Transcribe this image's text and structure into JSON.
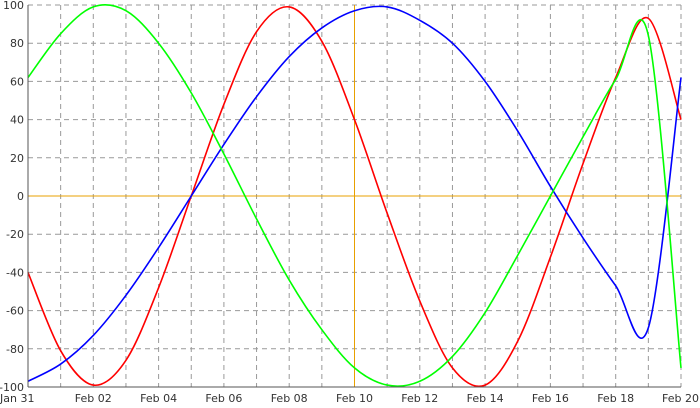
{
  "chart_data": {
    "type": "line",
    "title": "",
    "xlabel": "",
    "ylabel": "",
    "x_range": [
      "Jan 31",
      "Feb 20"
    ],
    "x_tick_labels": [
      "Jan 31",
      "Feb 02",
      "Feb 04",
      "Feb 06",
      "Feb 08",
      "Feb 10",
      "Feb 12",
      "Feb 14",
      "Feb 16",
      "Feb 18",
      "Feb 20"
    ],
    "ylim": [
      -100,
      100
    ],
    "y_ticks": [
      100,
      80,
      60,
      40,
      20,
      0,
      -20,
      -40,
      -60,
      -80,
      -100
    ],
    "grid": true,
    "legend": "none",
    "x": [
      "Jan 31",
      "Feb 01",
      "Feb 02",
      "Feb 03",
      "Feb 04",
      "Feb 05",
      "Feb 06",
      "Feb 07",
      "Feb 08",
      "Feb 09",
      "Feb 10",
      "Feb 11",
      "Feb 12",
      "Feb 13",
      "Feb 14",
      "Feb 15",
      "Feb 16",
      "Feb 17",
      "Feb 18",
      "Feb 19",
      "Feb 20"
    ],
    "series": [
      {
        "color": "#ff0000",
        "values": [
          -40,
          -81,
          -99,
          -86,
          -48,
          0,
          48,
          86,
          99,
          81,
          40,
          -9,
          -55,
          -90,
          -99,
          -76,
          -32,
          17,
          62,
          93,
          40
        ]
      },
      {
        "color": "#0000ff",
        "values": [
          -97,
          -88,
          -73,
          -52,
          -27,
          0,
          27,
          52,
          73,
          88,
          97,
          99,
          92,
          80,
          60,
          34,
          5,
          -22,
          -47,
          -69,
          62
        ]
      },
      {
        "color": "#00ff00",
        "values": [
          62,
          85,
          99,
          97,
          80,
          54,
          22,
          -12,
          -44,
          -70,
          -90,
          -99,
          -97,
          -84,
          -61,
          -31,
          0,
          31,
          61,
          84,
          -90
        ]
      }
    ],
    "reference_lines": {
      "color": "#e8a000",
      "x": "Feb 10",
      "y": 0
    },
    "colors": {
      "grid": "#999999",
      "axis": "#555555",
      "text": "#333333"
    }
  }
}
